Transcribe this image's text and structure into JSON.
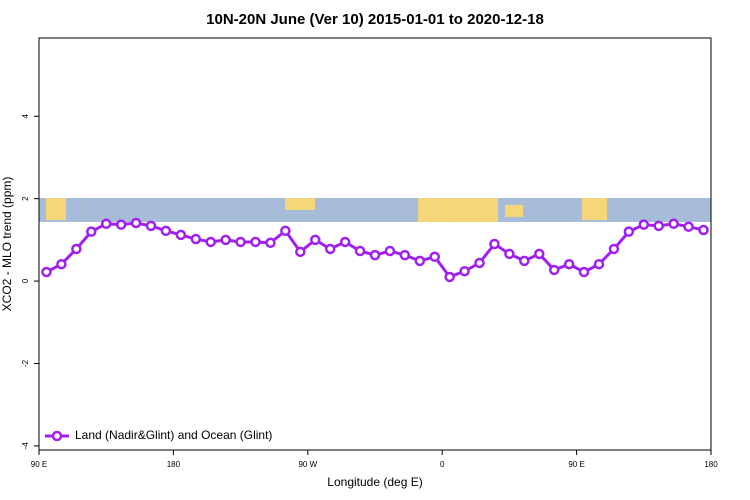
{
  "chart_data": {
    "type": "line",
    "title": "10N-20N June (Ver 10)   2015-01-01 to 2020-12-18",
    "x_label": "Longitude (deg E)",
    "y_label": "XCO2 - MLO trend (ppm)",
    "x": [
      95,
      105,
      115,
      125,
      135,
      145,
      155,
      165,
      175,
      185,
      195,
      205,
      215,
      225,
      235,
      245,
      255,
      265,
      275,
      285,
      295,
      305,
      315,
      325,
      335,
      345,
      355,
      365,
      375,
      385,
      395,
      405,
      415,
      425,
      435,
      445,
      455,
      465,
      475,
      485,
      495,
      505,
      515,
      525,
      535
    ],
    "series": [
      {
        "name": "Land (Nadir&Glint) and Ocean (Glint)",
        "color": "#a020f0",
        "values": [
          0.22,
          0.41,
          0.78,
          1.2,
          1.39,
          1.37,
          1.41,
          1.34,
          1.22,
          1.12,
          1.02,
          0.95,
          1.0,
          0.95,
          0.95,
          0.93,
          1.22,
          0.71,
          1.0,
          0.78,
          0.95,
          0.73,
          0.63,
          0.73,
          0.63,
          0.49,
          0.59,
          0.1,
          0.24,
          0.44,
          0.9,
          0.66,
          0.49,
          0.66,
          0.27,
          0.41,
          0.22,
          0.41,
          0.78,
          1.2,
          1.37,
          1.34,
          1.39,
          1.32,
          1.24
        ]
      }
    ],
    "xlim": [
      90,
      540
    ],
    "xticks": [
      {
        "value": 90,
        "label": "90 E"
      },
      180,
      {
        "value": 270,
        "label": "90 W"
      },
      {
        "value": 360,
        "label": "0"
      },
      {
        "value": 450,
        "label": "90 E"
      },
      {
        "value": 540,
        "label": "180"
      }
    ],
    "ylim": [
      -4.1,
      5.9
    ],
    "yticks": [
      -4,
      -2,
      0,
      2,
      4
    ],
    "legend": "bottom-left"
  }
}
